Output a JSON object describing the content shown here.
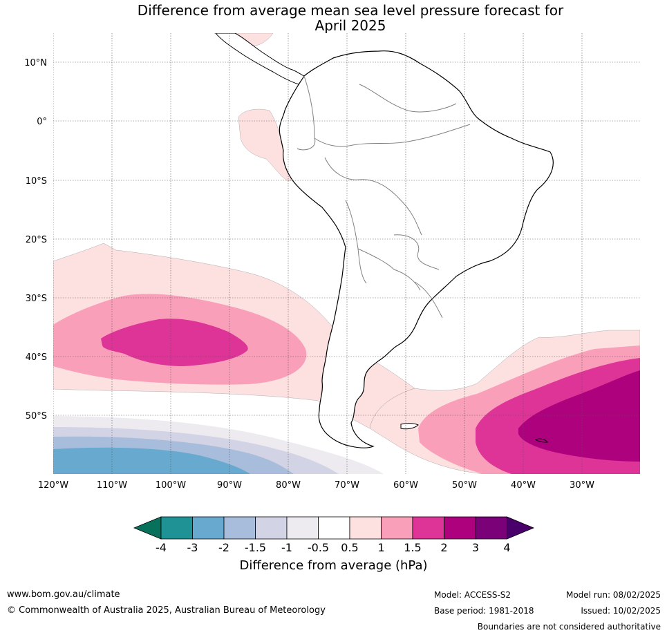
{
  "title_line1": "Difference from average mean sea level pressure forecast for",
  "title_line2": "April 2025",
  "lat_labels": [
    "10°N",
    "0°",
    "10°S",
    "20°S",
    "30°S",
    "40°S",
    "50°S"
  ],
  "lon_labels": [
    "120°W",
    "110°W",
    "100°W",
    "90°W",
    "80°W",
    "70°W",
    "60°W",
    "50°W",
    "40°W",
    "30°W"
  ],
  "colorbar": {
    "ticks": [
      "-4",
      "-3",
      "-2",
      "-1.5",
      "-1",
      "-0.5",
      "0.5",
      "1",
      "1.5",
      "2",
      "3",
      "4"
    ],
    "colors": [
      "#1f9296",
      "#67a9cf",
      "#a8bddc",
      "#d3d3e6",
      "#edeaf0",
      "#ffffff",
      "#fde0e0",
      "#f99fb9",
      "#de3397",
      "#ae017e",
      "#7a0177"
    ],
    "under_color": "#07715b",
    "over_color": "#4a006a",
    "label": "Difference from average (hPa)"
  },
  "footer": {
    "website": "www.bom.gov.au/climate",
    "copyright": "© Commonwealth of Australia 2025, Australian Bureau of Meteorology",
    "model": "Model: ACCESS-S2",
    "base_period": "Base period: 1981-2018",
    "model_run": "Model run: 08/02/2025",
    "issued": "Issued: 10/02/2025",
    "disclaimer": "Boundaries are not considered authoritative"
  }
}
